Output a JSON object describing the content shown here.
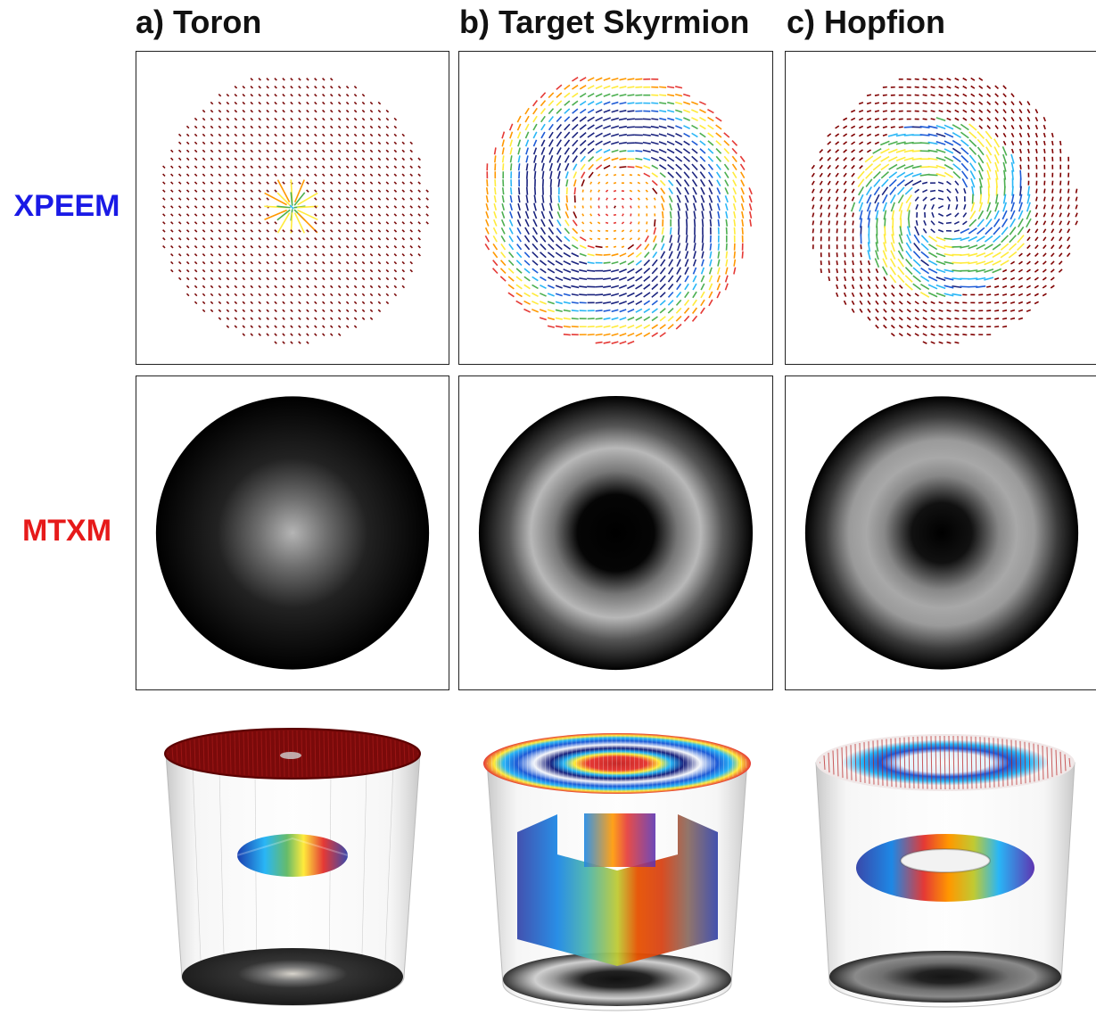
{
  "columns": [
    {
      "title": "a) Toron"
    },
    {
      "title": "b) Target Skyrmion"
    },
    {
      "title": "c) Hopfion"
    }
  ],
  "rows": [
    {
      "label": "XPEEM",
      "color": "#1a1ae6"
    },
    {
      "label": "MTXM",
      "color": "#e61a1a"
    }
  ],
  "colors": {
    "colormap": [
      "#1a237e",
      "#1e5bd6",
      "#29b6f6",
      "#4caf50",
      "#ffeb3b",
      "#ff9800",
      "#e53935",
      "#7f0000"
    ]
  }
}
